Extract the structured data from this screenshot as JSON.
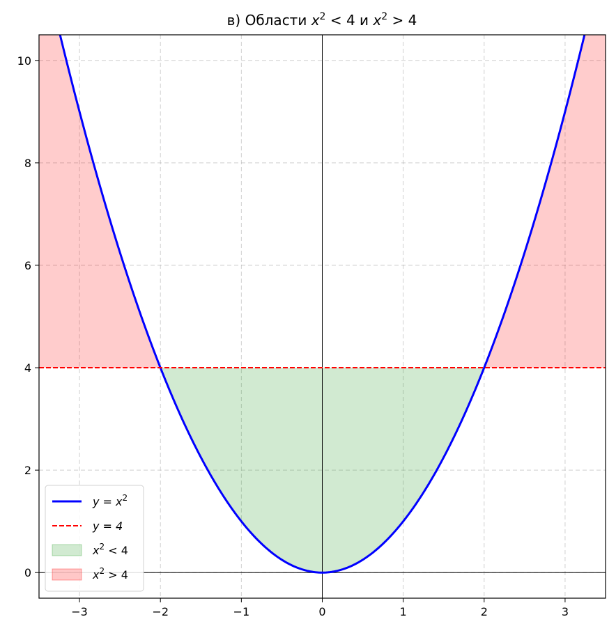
{
  "chart_data": {
    "type": "line",
    "title_prefix": "в) Области ",
    "title_parts": [
      {
        "text": "x",
        "italic": true
      },
      {
        "text": "2",
        "sup": true
      },
      {
        "text": " < 4 и "
      },
      {
        "text": "x",
        "italic": true
      },
      {
        "text": "2",
        "sup": true
      },
      {
        "text": " > 4"
      }
    ],
    "xlim": [
      -3.5,
      3.5
    ],
    "ylim": [
      -0.5,
      10.5
    ],
    "xticks": [
      -3,
      -2,
      -1,
      0,
      1,
      2,
      3
    ],
    "xtick_labels": [
      "−3",
      "−2",
      "−1",
      "0",
      "1",
      "2",
      "3"
    ],
    "yticks": [
      0,
      2,
      4,
      6,
      8,
      10
    ],
    "ytick_labels": [
      "0",
      "2",
      "4",
      "6",
      "8",
      "10"
    ],
    "grid": true,
    "legend_position": "lower-left",
    "series": [
      {
        "name": "y = x²",
        "function": "x^2",
        "color": "#0000ff",
        "style": "solid"
      },
      {
        "name": "y = 4",
        "function": "4",
        "color": "#ff0000",
        "style": "dashed"
      }
    ],
    "regions": [
      {
        "name": "x² < 4",
        "color": "#2ca02c",
        "opacity": 0.22,
        "x_range": [
          -2,
          2
        ],
        "between": [
          "x^2",
          "4"
        ]
      },
      {
        "name": "x² > 4",
        "color": "#ff0000",
        "opacity": 0.2,
        "x_range": [
          -3.5,
          -2
        ],
        "between": [
          "4",
          "x^2"
        ]
      },
      {
        "name": "x² > 4",
        "color": "#ff0000",
        "opacity": 0.2,
        "x_range": [
          2,
          3.5
        ],
        "between": [
          "4",
          "x^2"
        ]
      }
    ],
    "legend": [
      {
        "label": "y = x",
        "sup": "2",
        "kind": "line",
        "color": "#0000ff",
        "dash": false
      },
      {
        "label": "y = 4",
        "sup": "",
        "kind": "line",
        "color": "#ff0000",
        "dash": true
      },
      {
        "label": "x",
        "sup": "2",
        "tail": " < 4",
        "kind": "patch",
        "color": "#2ca02c"
      },
      {
        "label": "x",
        "sup": "2",
        "tail": " > 4",
        "kind": "patch",
        "color": "#ff0000"
      }
    ]
  }
}
